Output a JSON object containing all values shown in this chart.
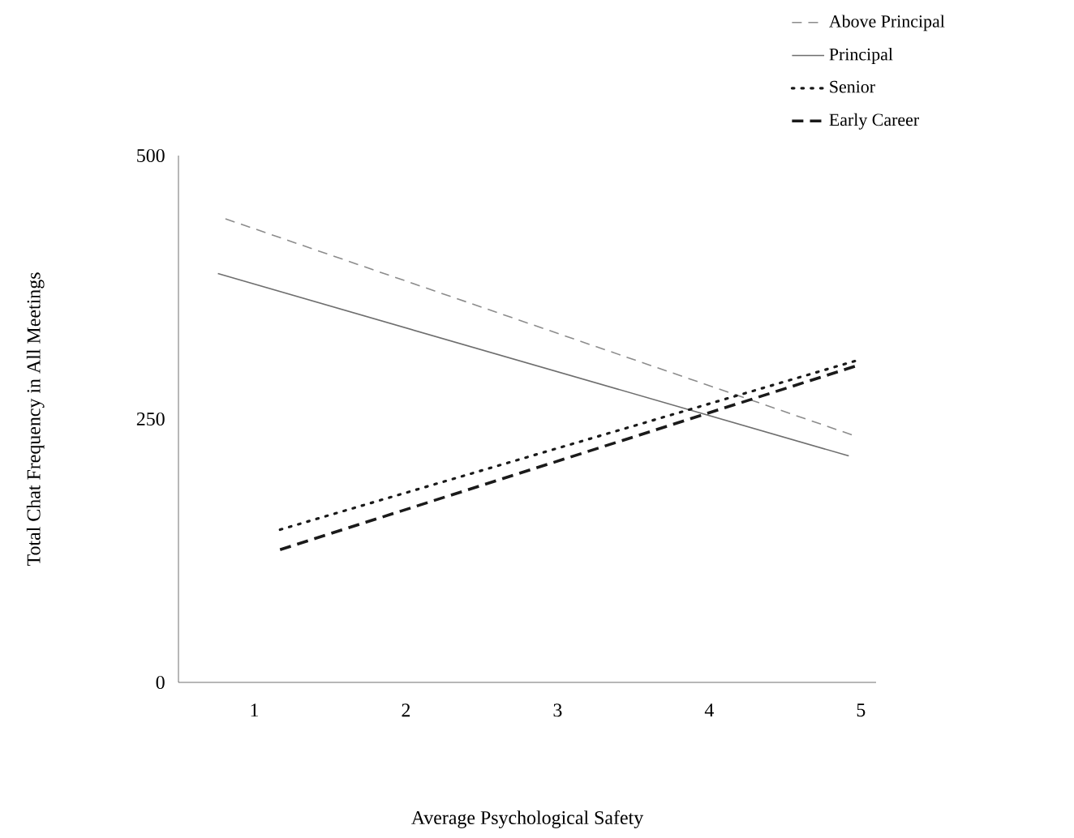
{
  "chart_data": {
    "type": "line",
    "xlabel": "Average Psychological Safety",
    "ylabel": "Total Chat Frequency in All Meetings",
    "xlim": [
      0.5,
      5.1
    ],
    "xticks": [
      1,
      2,
      3,
      4,
      5
    ],
    "ylim": [
      0,
      500
    ],
    "yticks": [
      0,
      250,
      500
    ],
    "legend": "top right",
    "grid": false,
    "marker": "none",
    "series": [
      {
        "name": "Above Principal",
        "color": "#8c8c8c",
        "line_style": "dashed",
        "x": [
          0.81,
          4.94
        ],
        "values": [
          440,
          235
        ]
      },
      {
        "name": "Principal",
        "color": "#6e6e6e",
        "line_style": "solid",
        "x": [
          0.76,
          4.92
        ],
        "values": [
          388,
          215
        ]
      },
      {
        "name": "Senior",
        "color": "#1a1a1a",
        "line_style": "dotted",
        "x": [
          1.17,
          4.96
        ],
        "values": [
          145,
          305
        ]
      },
      {
        "name": "Early Career",
        "color": "#1a1a1a",
        "line_style": "dashed",
        "x": [
          1.17,
          4.96
        ],
        "values": [
          126,
          300
        ]
      }
    ]
  }
}
